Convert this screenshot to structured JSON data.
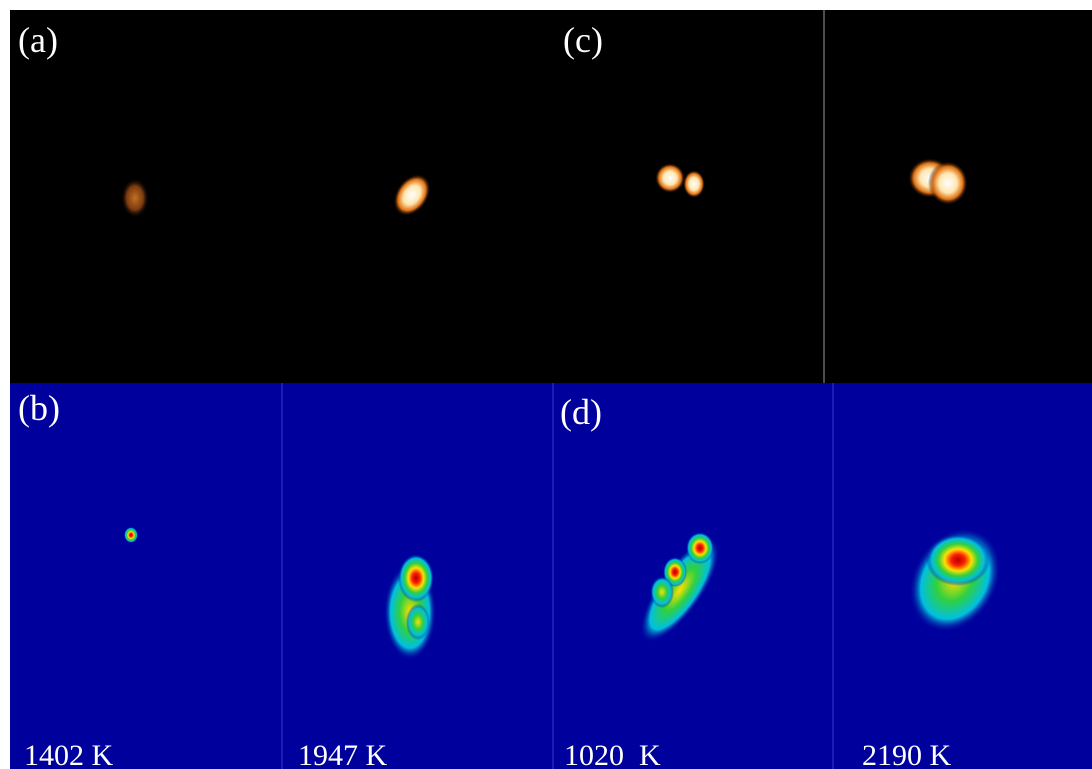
{
  "labels": {
    "a": "(a)",
    "b": "(b)",
    "c": "(c)",
    "d": "(d)"
  },
  "temperatures": [
    "1402 K",
    "1947 K",
    "1020  K",
    "2190 K"
  ]
}
